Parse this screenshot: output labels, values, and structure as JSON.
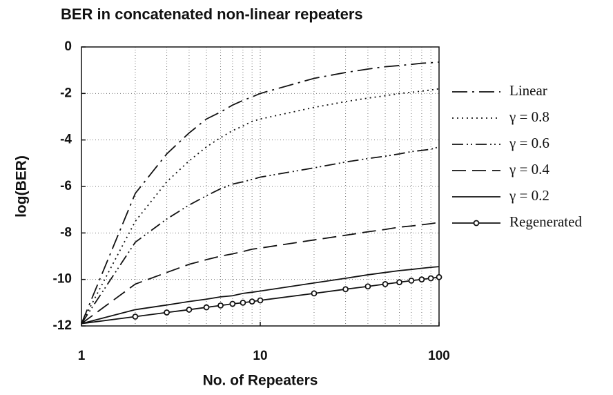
{
  "chart_data": {
    "type": "line",
    "title": "BER in concatenated non-linear repeaters",
    "xlabel": "No. of Repeaters",
    "ylabel": "log(BER)",
    "xscale": "log",
    "x": [
      1,
      2,
      3,
      4,
      5,
      6,
      7,
      8,
      9,
      10,
      20,
      30,
      40,
      50,
      60,
      70,
      80,
      90,
      100
    ],
    "xlim": [
      1,
      100
    ],
    "xticks": [
      1,
      10,
      100
    ],
    "ylim": [
      -12,
      0
    ],
    "yticks": [
      -12,
      -10,
      -8,
      -6,
      -4,
      -2,
      0
    ],
    "grid": true,
    "legend": "right",
    "series": [
      {
        "name": "Linear",
        "color": "#111111",
        "dash": "22 7 3 7",
        "values": [
          -11.9,
          -6.3,
          -4.6,
          -3.7,
          -3.1,
          -2.8,
          -2.5,
          -2.3,
          -2.15,
          -2.0,
          -1.35,
          -1.1,
          -0.95,
          -0.85,
          -0.8,
          -0.75,
          -0.7,
          -0.68,
          -0.65
        ]
      },
      {
        "name": "γ = 0.8",
        "color": "#111111",
        "dash": "2 5",
        "values": [
          -11.9,
          -7.5,
          -5.8,
          -4.9,
          -4.3,
          -3.9,
          -3.6,
          -3.4,
          -3.2,
          -3.1,
          -2.6,
          -2.35,
          -2.2,
          -2.1,
          -2.0,
          -1.95,
          -1.9,
          -1.85,
          -1.8
        ]
      },
      {
        "name": "γ = 0.6",
        "color": "#111111",
        "dash": "16 5 2 4 2 5",
        "values": [
          -11.9,
          -8.4,
          -7.4,
          -6.8,
          -6.4,
          -6.1,
          -5.9,
          -5.8,
          -5.7,
          -5.6,
          -5.2,
          -4.95,
          -4.8,
          -4.7,
          -4.6,
          -4.5,
          -4.45,
          -4.4,
          -4.3
        ]
      },
      {
        "name": "γ = 0.4",
        "color": "#111111",
        "dash": "20 9",
        "values": [
          -11.9,
          -10.2,
          -9.7,
          -9.35,
          -9.15,
          -9.0,
          -8.9,
          -8.8,
          -8.7,
          -8.65,
          -8.3,
          -8.1,
          -7.95,
          -7.85,
          -7.75,
          -7.7,
          -7.65,
          -7.6,
          -7.55
        ]
      },
      {
        "name": "γ = 0.2",
        "color": "#111111",
        "dash": "none",
        "values": [
          -11.9,
          -11.3,
          -11.1,
          -10.95,
          -10.85,
          -10.75,
          -10.7,
          -10.6,
          -10.55,
          -10.5,
          -10.15,
          -9.95,
          -9.8,
          -9.7,
          -9.62,
          -9.57,
          -9.52,
          -9.48,
          -9.45
        ]
      },
      {
        "name": "Regenerated",
        "color": "#111111",
        "dash": "none",
        "marker": true,
        "values": [
          -11.9,
          -11.6,
          -11.42,
          -11.3,
          -11.2,
          -11.12,
          -11.05,
          -11.0,
          -10.95,
          -10.9,
          -10.6,
          -10.42,
          -10.3,
          -10.2,
          -10.12,
          -10.05,
          -10.0,
          -9.95,
          -9.9
        ]
      }
    ]
  }
}
